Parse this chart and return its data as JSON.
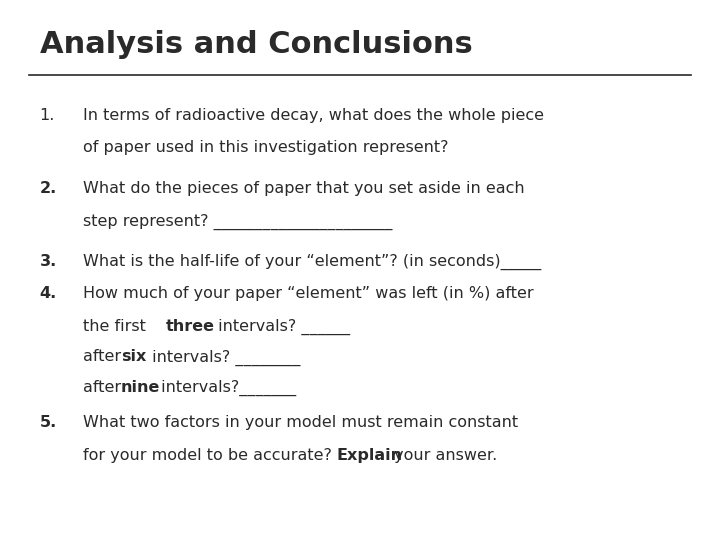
{
  "title": "Analysis and Conclusions",
  "bg_color": "#ffffff",
  "text_color": "#2a2a2a",
  "title_color": "#2a2a2a",
  "title_fontsize": 22,
  "body_fontsize": 11.5,
  "figsize": [
    7.2,
    5.4
  ],
  "dpi": 100
}
